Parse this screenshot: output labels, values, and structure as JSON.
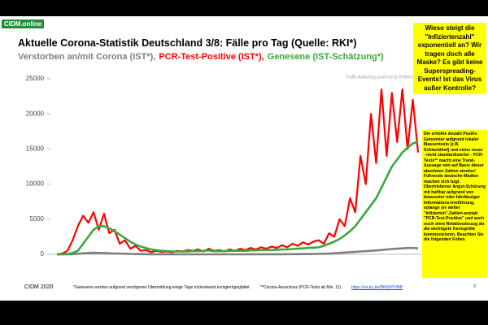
{
  "header": {
    "logo": "CIDM.online"
  },
  "chart_data": {
    "type": "line",
    "title": "Aktuelle Corona-Statistik Deutschland 3/8: Fälle pro Tag (Quelle: RKI*)",
    "watermark": "Traffic-Analyzing powered by ROMICO",
    "categories": [
      null,
      null,
      null,
      null,
      null,
      null,
      null,
      null,
      null,
      null,
      null,
      null,
      null,
      null,
      null,
      null,
      null,
      null,
      null,
      null,
      null,
      null,
      null,
      null,
      null,
      null,
      null,
      null,
      null,
      null,
      null,
      null,
      null,
      null,
      null,
      null,
      null,
      null,
      null,
      null,
      null,
      null,
      null,
      null,
      null,
      null,
      null,
      null,
      null,
      null,
      null,
      null,
      null,
      null,
      null,
      null,
      null,
      null,
      null,
      null,
      null,
      null,
      null,
      null,
      null,
      null,
      null,
      null,
      null,
      null
    ],
    "ylim": [
      0,
      25000
    ],
    "yticks": [
      0,
      5000,
      10000,
      15000,
      20000,
      25000
    ],
    "grid": false,
    "series": [
      {
        "name": "Verstorben an/mit Corona (IST*),",
        "color": "#7f7f7f",
        "values": [
          0,
          0,
          0,
          20,
          80,
          150,
          200,
          220,
          200,
          180,
          150,
          120,
          100,
          80,
          60,
          40,
          30,
          20,
          15,
          10,
          10,
          8,
          6,
          5,
          5,
          5,
          5,
          5,
          5,
          5,
          5,
          5,
          5,
          5,
          5,
          5,
          5,
          8,
          10,
          10,
          10,
          12,
          15,
          15,
          20,
          20,
          25,
          30,
          40,
          50,
          60,
          80,
          100,
          150,
          200,
          250,
          300,
          350,
          400,
          450,
          500,
          550,
          600,
          700,
          750,
          800,
          850,
          900,
          900,
          850
        ]
      },
      {
        "name": "PCR-Test-Positive (IST*),",
        "color": "#ff0000",
        "values": [
          0,
          100,
          500,
          2000,
          4000,
          5500,
          4500,
          6000,
          3500,
          5800,
          3000,
          3500,
          1500,
          2000,
          800,
          1200,
          500,
          600,
          300,
          500,
          350,
          400,
          300,
          500,
          400,
          600,
          500,
          700,
          400,
          800,
          500,
          600,
          400,
          700,
          500,
          800,
          600,
          900,
          700,
          1000,
          800,
          1100,
          900,
          1300,
          1000,
          1500,
          1200,
          1700,
          1400,
          1800,
          2000,
          1500,
          3000,
          2500,
          5000,
          4000,
          8000,
          6000,
          14000,
          10000,
          20000,
          13000,
          23500,
          14000,
          23000,
          16000,
          23500,
          15000,
          22000,
          14500
        ]
      },
      {
        "name": "Genesene (IST-Schätzung*)",
        "color": "#3aa83a",
        "values": [
          0,
          0,
          50,
          200,
          500,
          1500,
          2500,
          3500,
          4000,
          4000,
          3700,
          3300,
          2800,
          2300,
          1800,
          1400,
          1100,
          900,
          700,
          600,
          500,
          450,
          400,
          400,
          400,
          400,
          450,
          450,
          500,
          550,
          450,
          450,
          450,
          500,
          500,
          500,
          500,
          550,
          550,
          600,
          600,
          600,
          650,
          700,
          700,
          750,
          800,
          850,
          900,
          950,
          1000,
          1200,
          1500,
          1800,
          2200,
          2700,
          3300,
          4000,
          5000,
          6000,
          7000,
          8000,
          9500,
          11000,
          12500,
          13500,
          14500,
          15200,
          15800,
          16000
        ]
      }
    ]
  },
  "sidebar": {
    "question": "Wieso steigt die \"Infiziertenzahl\" exponentiell an? Wir tragen doch alle Maske? Es gibt keine Superspreading-Events! Ist das Virus außer Kontrolle?",
    "note": "Die erhöhte Anzahl Positiv-Getesteter aufgrund lokaler Massentests (z.B. Schlachthof) und vieler neuer - nicht standardisierter - PCR-Tests** macht eine Trend-Aussage rein auf Basis dieser absoluten Zahlen sinnlos! Führende deutsche Medien machen sich bzgl. Übertriebener Angst-Schürung mit haftbar aufgrund von bewusster oder fahrlässiger Informations-Irreführung, solange sie weiter \"Infizierten\"-Zahlen anstatt \"PCR-Test-Positive\" und auch noch ohne Relationsbezug als die wichtigste Kenngröße kommunizieren. Beachten Sie die folgenden Folien."
  },
  "footer": {
    "left": "CIDM 2020",
    "note1": "*Genesene werden aufgrund verzögerter Übermittlung einige Tage rückwirkend korrigiert/geglättet",
    "note2": "**Corona-Ausschuss (PCR-Tests ab  Min. 11):",
    "link": "https://youtu.be/B8dUP1ft8B",
    "page": "8"
  }
}
